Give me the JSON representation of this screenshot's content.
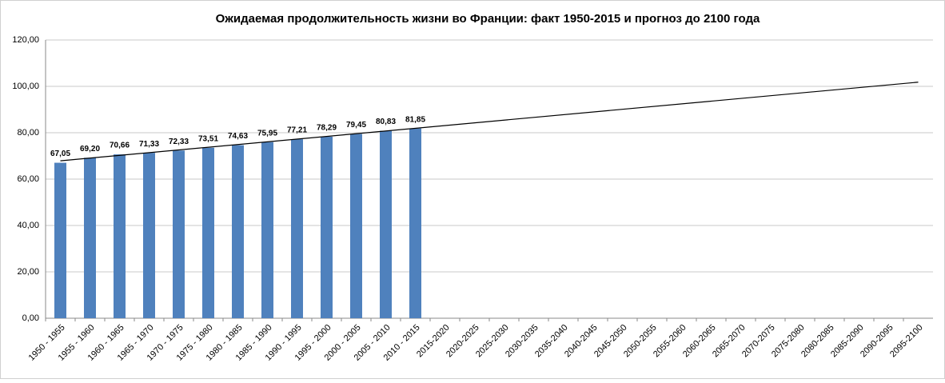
{
  "chart_data": {
    "type": "bar",
    "title": "Ожидаемая продолжительность жизни во Франции: факт 1950-2015 и прогноз до 2100 года",
    "categories": [
      "1950 - 1955",
      "1955 - 1960",
      "1960 - 1965",
      "1965 - 1970",
      "1970 - 1975",
      "1975 - 1980",
      "1980 - 1985",
      "1985 - 1990",
      "1990 - 1995",
      "1995 - 2000",
      "2000 - 2005",
      "2005 - 2010",
      "2010 - 2015",
      "2015-2020",
      "2020-2025",
      "2025-2030",
      "2030-2035",
      "2035-2040",
      "2040-2045",
      "2045-2050",
      "2050-2055",
      "2055-2060",
      "2060-2065",
      "2065-2070",
      "2070-2075",
      "2075-2080",
      "2080-2085",
      "2085-2090",
      "2090-2095",
      "2095-2100"
    ],
    "values": [
      67.05,
      69.2,
      70.66,
      71.33,
      72.33,
      73.51,
      74.63,
      75.95,
      77.21,
      78.29,
      79.45,
      80.83,
      81.85,
      null,
      null,
      null,
      null,
      null,
      null,
      null,
      null,
      null,
      null,
      null,
      null,
      null,
      null,
      null,
      null,
      null
    ],
    "value_labels": [
      "67,05",
      "69,20",
      "70,66",
      "71,33",
      "72,33",
      "73,51",
      "74,63",
      "75,95",
      "77,21",
      "78,29",
      "79,45",
      "80,83",
      "81,85",
      null,
      null,
      null,
      null,
      null,
      null,
      null,
      null,
      null,
      null,
      null,
      null,
      null,
      null,
      null,
      null,
      null
    ],
    "color": "#4f81bd",
    "trendline": {
      "start": 67.9,
      "end": 101.8,
      "color": "#000000"
    },
    "ylim": [
      0,
      120
    ],
    "yticks": [
      {
        "value": 0,
        "label": "0,00"
      },
      {
        "value": 20,
        "label": "20,00"
      },
      {
        "value": 40,
        "label": "40,00"
      },
      {
        "value": 60,
        "label": "60,00"
      },
      {
        "value": 80,
        "label": "80,00"
      },
      {
        "value": 100,
        "label": "100,00"
      },
      {
        "value": 120,
        "label": "120,00"
      }
    ],
    "grid": true
  }
}
